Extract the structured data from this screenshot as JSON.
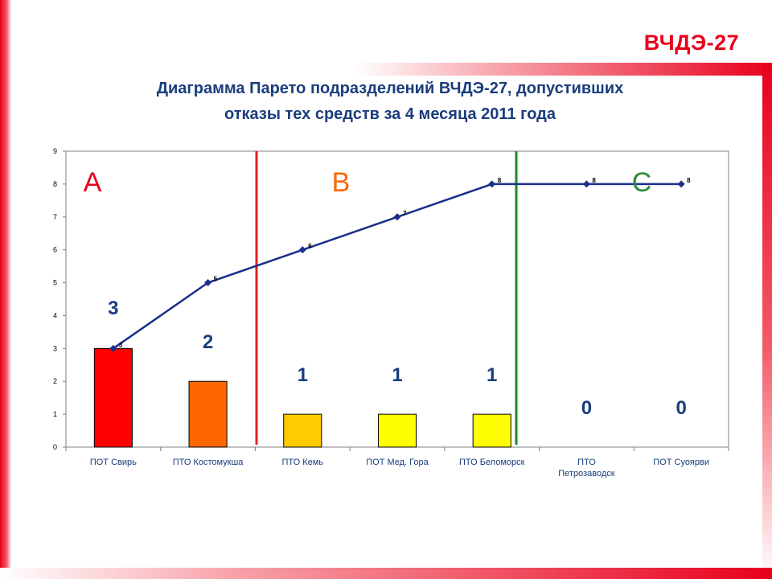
{
  "header": {
    "org_label": "ВЧДЭ-27",
    "title_line1": "Диаграмма Парето подразделений ВЧДЭ-27, допустивших",
    "title_line2": "отказы тех средств за 4 месяца 2011 года"
  },
  "colors": {
    "frame": "#e8001c",
    "title": "#1a3d7c",
    "line": "#1a2f8a",
    "divider_ab": "#e02020",
    "divider_bc": "#1a8a2a"
  },
  "chart_data": {
    "type": "bar",
    "title": "Диаграмма Парето подразделений ВЧДЭ-27, допустивших отказы тех средств за 4 месяца 2011 года",
    "xlabel": "",
    "ylabel": "",
    "ylim": [
      0,
      9
    ],
    "y_ticks": [
      "0",
      "1",
      "2",
      "3",
      "4",
      "5",
      "6",
      "7",
      "8",
      "9"
    ],
    "grid": false,
    "categories": [
      [
        "ПОТ Свирь"
      ],
      [
        "ПТО Костомукша"
      ],
      [
        "ПТО Кемь"
      ],
      [
        "ПОТ Мед. Гора"
      ],
      [
        "ПТО Беломорск"
      ],
      [
        "ПТО",
        "Петрозаводск"
      ],
      [
        "ПОТ Суоярви"
      ]
    ],
    "series": [
      {
        "type": "bar",
        "values": [
          3,
          2,
          1,
          1,
          1,
          0,
          0
        ],
        "colors": [
          "#ff0000",
          "#ff6600",
          "#ffcc00",
          "#ffff00",
          "#ffff00",
          "#ffffff",
          "#ffffff"
        ],
        "value_labels": [
          "3",
          "2",
          "1",
          "1",
          "1",
          "0",
          "0"
        ]
      },
      {
        "type": "line",
        "values": [
          3,
          5,
          6,
          7,
          8,
          8,
          8
        ],
        "value_labels": [
          "3",
          "5",
          "6",
          "7",
          "8",
          "8",
          "8"
        ],
        "marker": "diamond"
      }
    ],
    "zones": [
      {
        "label": "A",
        "color": "#e8001c"
      },
      {
        "label": "B",
        "color": "#ff6600"
      },
      {
        "label": "C",
        "color": "#2e8b3a"
      }
    ]
  }
}
